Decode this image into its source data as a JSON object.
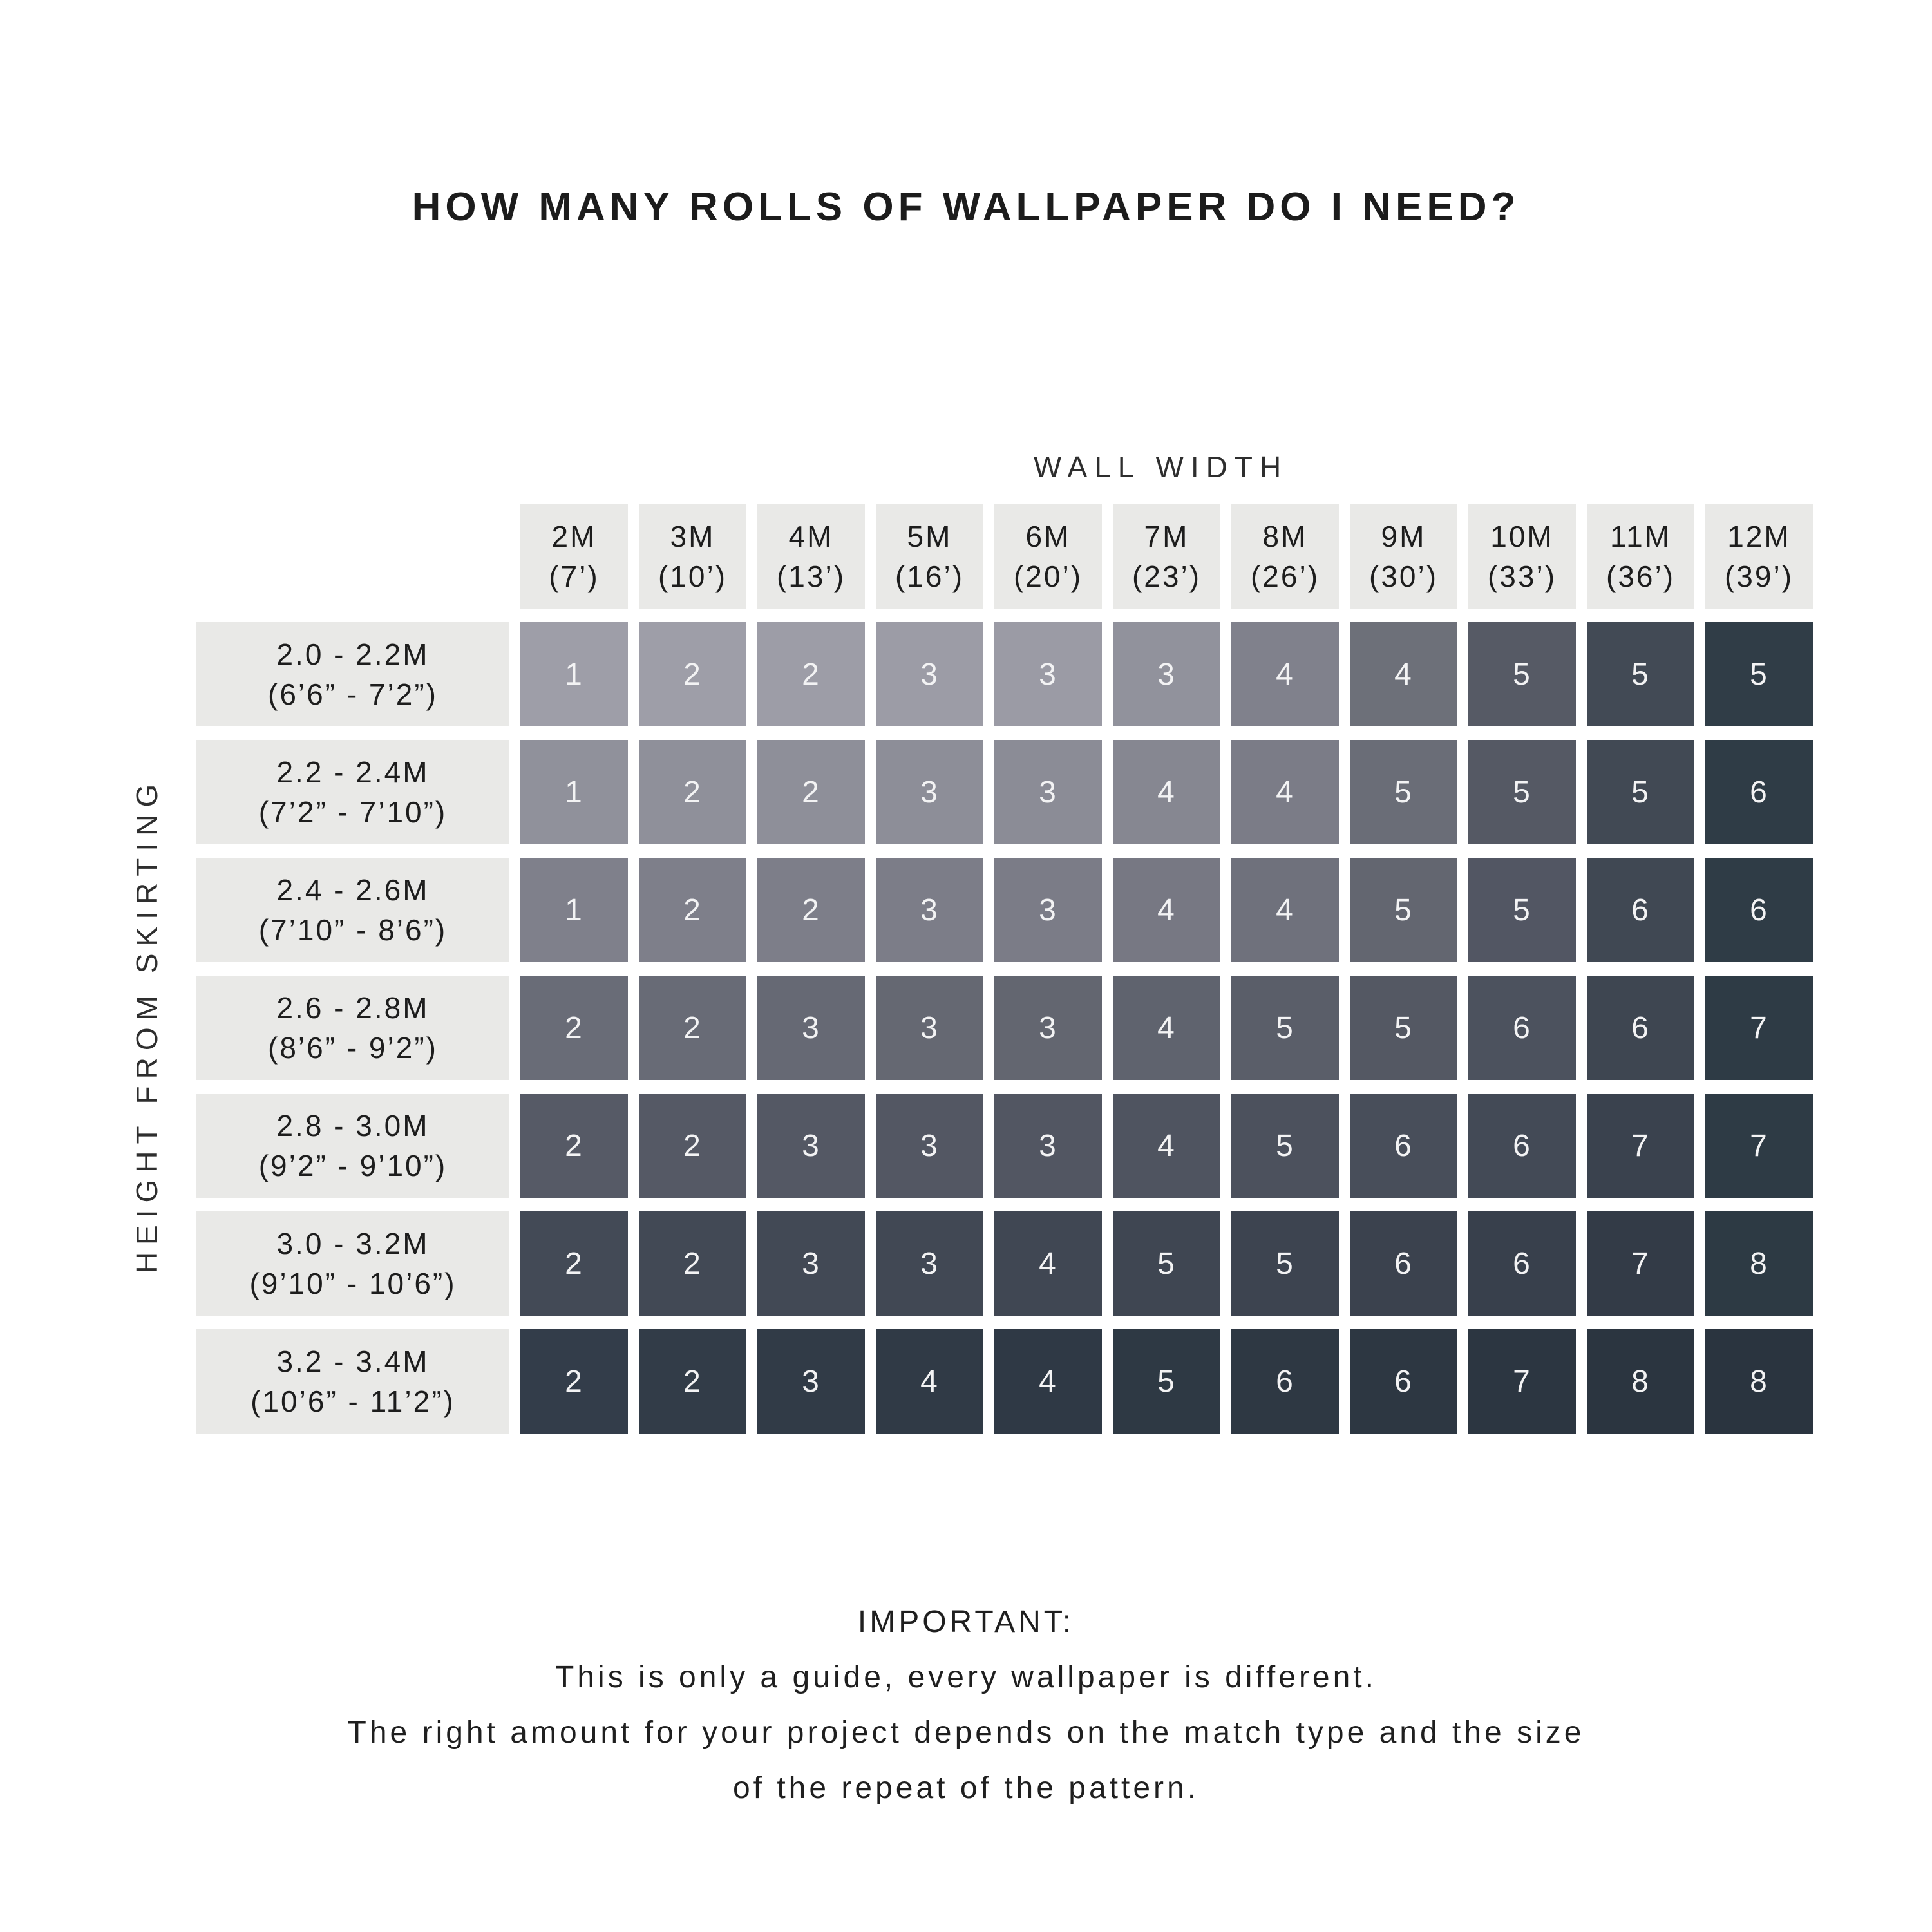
{
  "title": "HOW MANY ROLLS OF WALLPAPER DO I NEED?",
  "grid": {
    "columns": [
      {
        "line1": "2M",
        "line2": "(7’)"
      },
      {
        "line1": "3M",
        "line2": "(10’)"
      },
      {
        "line1": "4M",
        "line2": "(13’)"
      },
      {
        "line1": "5M",
        "line2": "(16’)"
      },
      {
        "line1": "6M",
        "line2": "(20’)"
      },
      {
        "line1": "7M",
        "line2": "(23’)"
      },
      {
        "line1": "8M",
        "line2": "(26’)"
      },
      {
        "line1": "9M",
        "line2": "(30’)"
      },
      {
        "line1": "10M",
        "line2": "(33’)"
      },
      {
        "line1": "11M",
        "line2": "(36’)"
      },
      {
        "line1": "12M",
        "line2": "(39’)"
      }
    ],
    "rows": [
      {
        "line1": "2.0 - 2.2M",
        "line2": "(6’6” - 7’2”)"
      },
      {
        "line1": "2.2 - 2.4M",
        "line2": "(7’2” - 7’10”)"
      },
      {
        "line1": "2.4 - 2.6M",
        "line2": "(7’10” - 8’6”)"
      },
      {
        "line1": "2.6 - 2.8M",
        "line2": "(8’6” - 9’2”)"
      },
      {
        "line1": "2.8 - 3.0M",
        "line2": "(9’2” - 9’10”)"
      },
      {
        "line1": "3.0 - 3.2M",
        "line2": "(9’10” - 10’6”)"
      },
      {
        "line1": "3.2 - 3.4M",
        "line2": "(10’6” - 11’2”)"
      }
    ]
  },
  "chart_data": {
    "type": "heatmap",
    "title": "HOW MANY ROLLS OF WALLPAPER DO I NEED?",
    "xlabel": "WALL WIDTH",
    "ylabel": "HEIGHT FROM SKIRTING",
    "x_categories": [
      "2M (7’)",
      "3M (10’)",
      "4M (13’)",
      "5M (16’)",
      "6M (20’)",
      "7M (23’)",
      "8M (26’)",
      "9M (30’)",
      "10M (33’)",
      "11M (36’)",
      "12M (39’)"
    ],
    "y_categories": [
      "2.0 - 2.2M (6’6” - 7’2”)",
      "2.2 - 2.4M (7’2” - 7’10”)",
      "2.4 - 2.6M (7’10” - 8’6”)",
      "2.6 - 2.8M (8’6” - 9’2”)",
      "2.8 - 3.0M (9’2” - 9’10”)",
      "3.0 - 3.2M (9’10” - 10’6”)",
      "3.2 - 3.4M (10’6” - 11’2”)"
    ],
    "values": [
      [
        1,
        2,
        2,
        3,
        3,
        3,
        4,
        4,
        5,
        5,
        5
      ],
      [
        1,
        2,
        2,
        3,
        3,
        4,
        4,
        5,
        5,
        5,
        6
      ],
      [
        1,
        2,
        2,
        3,
        3,
        4,
        4,
        5,
        5,
        6,
        6
      ],
      [
        2,
        2,
        3,
        3,
        3,
        4,
        5,
        5,
        6,
        6,
        7
      ],
      [
        2,
        2,
        3,
        3,
        3,
        4,
        5,
        6,
        6,
        7,
        7
      ],
      [
        2,
        2,
        3,
        3,
        4,
        5,
        5,
        6,
        6,
        7,
        8
      ],
      [
        2,
        2,
        3,
        4,
        4,
        5,
        6,
        6,
        7,
        8,
        8
      ]
    ],
    "cell_colors": [
      [
        "#9e9ea8",
        "#9e9ea8",
        "#9d9da7",
        "#9c9ca6",
        "#9b9ba5",
        "#91929c",
        "#80818c",
        "#6d7079",
        "#565a65",
        "#424a55",
        "#303d47"
      ],
      [
        "#90919b",
        "#8f909a",
        "#8e8f99",
        "#8d8e98",
        "#8b8c96",
        "#868791",
        "#7b7c87",
        "#6a6d77",
        "#555964",
        "#414954",
        "#2f3c46"
      ],
      [
        "#7f808b",
        "#7e7f8a",
        "#7d7e89",
        "#7c7d88",
        "#7b7c87",
        "#777883",
        "#6f717c",
        "#636670",
        "#525663",
        "#404853",
        "#2f3c46"
      ],
      [
        "#696c77",
        "#686b76",
        "#666974",
        "#656872",
        "#636670",
        "#5f636e",
        "#5a5e69",
        "#545863",
        "#4c525e",
        "#3e4651",
        "#2e3b45"
      ],
      [
        "#565a66",
        "#555965",
        "#545864",
        "#535763",
        "#525662",
        "#4f5460",
        "#4c515d",
        "#484e5a",
        "#434a56",
        "#3a424e",
        "#2e3b45"
      ],
      [
        "#434a56",
        "#424955",
        "#424955",
        "#414854",
        "#404753",
        "#3f4652",
        "#3d4450",
        "#3b424e",
        "#38404c",
        "#333b47",
        "#2d3a44"
      ],
      [
        "#333d4a",
        "#323c48",
        "#313b47",
        "#303a46",
        "#2f3945",
        "#2e3944",
        "#2e3843",
        "#2d3742",
        "#2c3641",
        "#2b3540",
        "#2a343f"
      ]
    ],
    "legend": "none",
    "grid_on": false
  },
  "footer": {
    "lines": [
      "IMPORTANT:",
      "This is only a guide, every wallpaper is different.",
      "The right amount for your project depends on the match type and the size",
      "of the repeat of the pattern."
    ]
  },
  "colors": {
    "page_bg": "#ffffff",
    "header_cell_bg": "#e9e9e7",
    "row_label_bg": "#e9e9e7",
    "cell_text": "#f3f3f4",
    "heading_text": "#1c1c1c",
    "body_text": "#1f1f1f",
    "lightest_cell": "#9e9ea8",
    "darkest_cell": "#2a343f"
  }
}
